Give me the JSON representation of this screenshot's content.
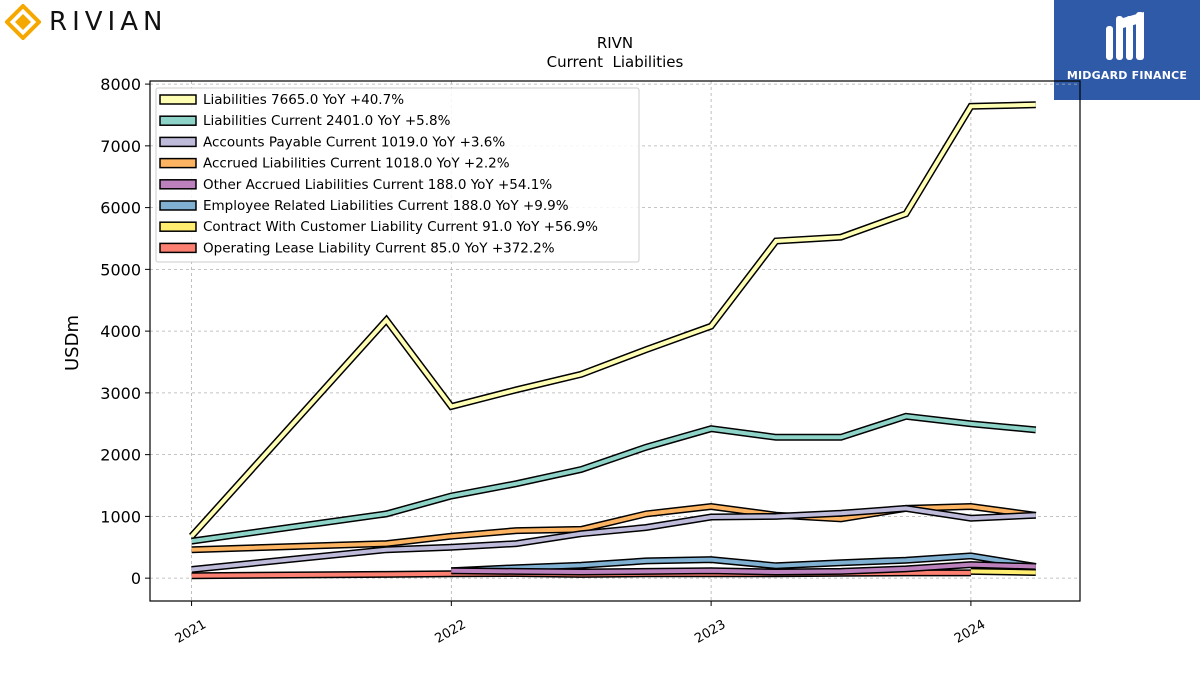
{
  "brand": {
    "name": "RIVIAN",
    "logo_icon": "diamond-logo-icon",
    "logo_color": "#f5a800"
  },
  "partner": {
    "name": "MIDGARD FINANCE",
    "logo_icon": "midgard-m-logo-icon",
    "bg_color": "#2f5aa8"
  },
  "chart_data": {
    "type": "line",
    "title": "RIVN",
    "subtitle": "Current  Liabilities",
    "ylabel": "USDm",
    "xlabel": "",
    "ylim": [
      -370,
      8050
    ],
    "xlim": [
      2020.84,
      2024.42
    ],
    "x_ticks": [
      2021,
      2022,
      2023,
      2024
    ],
    "x_tick_labels": [
      "2021",
      "2022",
      "2023",
      "2024"
    ],
    "y_ticks": [
      0,
      1000,
      2000,
      3000,
      4000,
      5000,
      6000,
      7000,
      8000
    ],
    "grid": true,
    "legend_position": "top-left",
    "x": [
      2021.0,
      2021.75,
      2022.0,
      2022.25,
      2022.5,
      2022.75,
      2023.0,
      2023.25,
      2023.5,
      2023.75,
      2024.0,
      2024.25
    ],
    "series": [
      {
        "name": "Liabilities",
        "legend": "Liabilities  7665.0 YoY +40.7%",
        "color": "#ffffb3",
        "x": [
          2021.0,
          2021.75,
          2022.0,
          2022.25,
          2022.5,
          2022.75,
          2023.0,
          2023.25,
          2023.5,
          2023.75,
          2024.0,
          2024.25
        ],
        "values": [
          680,
          4180,
          2780,
          3050,
          3300,
          3700,
          4080,
          5460,
          5520,
          5900,
          7640,
          7665
        ]
      },
      {
        "name": "Liabilities Current",
        "legend": "Liabilities Current  2401.0 YoY +5.8%",
        "color": "#8dd3c7",
        "x": [
          2021.0,
          2021.75,
          2022.0,
          2022.25,
          2022.5,
          2022.75,
          2023.0,
          2023.25,
          2023.5,
          2023.75,
          2024.0,
          2024.25
        ],
        "values": [
          600,
          1040,
          1330,
          1530,
          1760,
          2120,
          2420,
          2280,
          2280,
          2620,
          2500,
          2401
        ]
      },
      {
        "name": "Accounts Payable Current",
        "legend": "Accounts Payable Current  1019.0 YoY +3.6%",
        "color": "#bebada",
        "x": [
          2021.0,
          2021.75,
          2022.0,
          2022.25,
          2022.5,
          2022.75,
          2023.0,
          2023.25,
          2023.5,
          2023.75,
          2024.0,
          2024.25
        ],
        "values": [
          140,
          460,
          500,
          560,
          720,
          820,
          990,
          1000,
          1050,
          1130,
          970,
          1019
        ]
      },
      {
        "name": "Accrued Liabilities Current",
        "legend": "Accrued Liabilities Current  1018.0 YoY +2.2%",
        "color": "#fdb462",
        "x": [
          2021.0,
          2021.75,
          2022.0,
          2022.25,
          2022.5,
          2022.75,
          2023.0,
          2023.25,
          2023.5,
          2023.75,
          2024.0,
          2024.25
        ],
        "values": [
          460,
          560,
          680,
          770,
          790,
          1040,
          1160,
          1020,
          960,
          1130,
          1160,
          1018
        ]
      },
      {
        "name": "Other Accrued Liabilities Current",
        "legend": "Other Accrued Liabilities Current  188.0 YoY +54.1%",
        "color": "#bc80bd",
        "x": [
          2022.0,
          2022.25,
          2022.5,
          2022.75,
          2023.0,
          2023.25,
          2023.5,
          2023.75,
          2024.0,
          2024.25
        ],
        "values": [
          120,
          110,
          100,
          110,
          120,
          100,
          110,
          150,
          220,
          188
        ]
      },
      {
        "name": "Employee Related Liabilities Current",
        "legend": "Employee Related Liabilities Current  188.0 YoY +9.9%",
        "color": "#80b1d3",
        "x": [
          2022.0,
          2022.25,
          2022.5,
          2022.75,
          2023.0,
          2023.25,
          2023.5,
          2023.75,
          2024.0,
          2024.25
        ],
        "values": [
          120,
          170,
          210,
          280,
          300,
          200,
          250,
          290,
          360,
          188
        ]
      },
      {
        "name": "Contract With Customer Liability Current",
        "legend": "Contract With Customer Liability Current  91.0 YoY +56.9%",
        "color": "#ffed6f",
        "x": [
          2024.0,
          2024.25
        ],
        "values": [
          110,
          91
        ]
      },
      {
        "name": "Operating Lease Liability Current",
        "legend": "Operating Lease Liability Current  85.0 YoY +372.2%",
        "color": "#fb8072",
        "x": [
          2021.0,
          2021.75,
          2022.0,
          2022.25,
          2022.5,
          2022.75,
          2023.0,
          2023.25,
          2023.5,
          2023.75,
          2024.0
        ],
        "values": [
          40,
          60,
          70,
          75,
          60,
          70,
          70,
          70,
          80,
          85,
          85
        ]
      }
    ]
  }
}
